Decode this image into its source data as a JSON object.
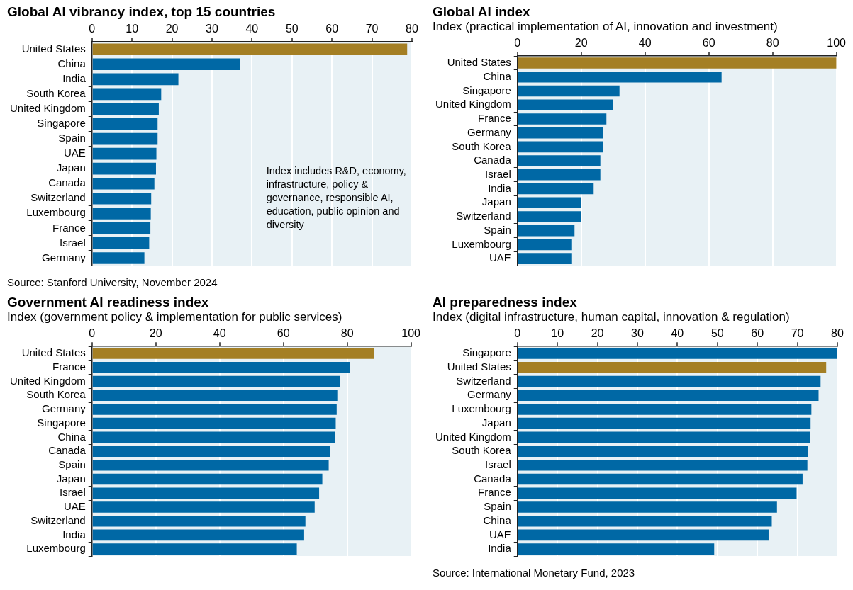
{
  "chart_data": [
    {
      "type": "bar",
      "orientation": "horizontal",
      "title": "Global AI vibrancy index, top 15 countries",
      "categories": [
        "United States",
        "China",
        "India",
        "South Korea",
        "United Kingdom",
        "Singapore",
        "Spain",
        "UAE",
        "Japan",
        "Canada",
        "Switzerland",
        "Luxembourg",
        "France",
        "Israel",
        "Germany"
      ],
      "values": [
        78.8,
        37.0,
        21.6,
        17.3,
        16.7,
        16.4,
        16.4,
        16.1,
        16.0,
        15.6,
        14.8,
        14.7,
        14.6,
        14.3,
        13.1
      ],
      "colors": [
        "#a47f24",
        "#0068a5",
        "#0068a5",
        "#0068a5",
        "#0068a5",
        "#0068a5",
        "#0068a5",
        "#0068a5",
        "#0068a5",
        "#0068a5",
        "#0068a5",
        "#0068a5",
        "#0068a5",
        "#0068a5",
        "#0068a5"
      ],
      "xlim": [
        0,
        80
      ],
      "xticks": [
        0,
        10,
        20,
        30,
        40,
        50,
        60,
        70,
        80
      ],
      "grid": "x",
      "annotations": [
        "Index includes R&D, economy, infrastructure, policy & governance, responsible AI, education, public opinion and diversity",
        "Source: Stanford University, November 2024"
      ]
    },
    {
      "type": "bar",
      "orientation": "horizontal",
      "title": "Global AI index",
      "subtitle": "Index (practical implementation of AI, innovation and investment)",
      "categories": [
        "United States",
        "China",
        "Singapore",
        "United Kingdom",
        "France",
        "Germany",
        "South Korea",
        "Canada",
        "Israel",
        "India",
        "Japan",
        "Switzerland",
        "Spain",
        "Luxembourg",
        "UAE"
      ],
      "values": [
        100,
        64.0,
        32.0,
        30.0,
        27.9,
        26.9,
        26.9,
        26.0,
        26.0,
        23.9,
        20.0,
        20.0,
        17.9,
        16.9,
        16.9
      ],
      "colors": [
        "#a47f24",
        "#0068a5",
        "#0068a5",
        "#0068a5",
        "#0068a5",
        "#0068a5",
        "#0068a5",
        "#0068a5",
        "#0068a5",
        "#0068a5",
        "#0068a5",
        "#0068a5",
        "#0068a5",
        "#0068a5",
        "#0068a5"
      ],
      "xlim": [
        0,
        100
      ],
      "xticks": [
        0,
        20,
        40,
        60,
        80,
        100
      ],
      "grid": "x"
    },
    {
      "type": "bar",
      "orientation": "horizontal",
      "title": "Government AI readiness index",
      "subtitle": "Index (government policy & implementation for public services)",
      "categories": [
        "United States",
        "France",
        "United Kingdom",
        "South Korea",
        "Germany",
        "Singapore",
        "China",
        "Canada",
        "Spain",
        "Japan",
        "Israel",
        "UAE",
        "Switzerland",
        "India",
        "Luxembourg"
      ],
      "values": [
        88.5,
        80.9,
        77.7,
        76.9,
        76.7,
        76.4,
        76.2,
        74.6,
        74.2,
        72.2,
        71.2,
        69.8,
        66.9,
        66.5,
        64.2
      ],
      "colors": [
        "#a47f24",
        "#0068a5",
        "#0068a5",
        "#0068a5",
        "#0068a5",
        "#0068a5",
        "#0068a5",
        "#0068a5",
        "#0068a5",
        "#0068a5",
        "#0068a5",
        "#0068a5",
        "#0068a5",
        "#0068a5",
        "#0068a5"
      ],
      "xlim": [
        0,
        100
      ],
      "xticks": [
        0,
        20,
        40,
        60,
        80,
        100
      ],
      "grid": "x"
    },
    {
      "type": "bar",
      "orientation": "horizontal",
      "title": "AI preparedness index",
      "subtitle": "Index (digital infrastructure, human capital, innovation & regulation)",
      "categories": [
        "Singapore",
        "United States",
        "Switzerland",
        "Germany",
        "Luxembourg",
        "Japan",
        "United Kingdom",
        "South Korea",
        "Israel",
        "Canada",
        "France",
        "Spain",
        "China",
        "UAE",
        "India"
      ],
      "values": [
        80.0,
        77.2,
        75.8,
        75.3,
        73.5,
        73.3,
        73.1,
        72.6,
        72.5,
        71.3,
        69.8,
        64.9,
        63.6,
        62.8,
        49.2
      ],
      "colors": [
        "#0068a5",
        "#a47f24",
        "#0068a5",
        "#0068a5",
        "#0068a5",
        "#0068a5",
        "#0068a5",
        "#0068a5",
        "#0068a5",
        "#0068a5",
        "#0068a5",
        "#0068a5",
        "#0068a5",
        "#0068a5",
        "#0068a5"
      ],
      "xlim": [
        0,
        80
      ],
      "xticks": [
        0,
        10,
        20,
        30,
        40,
        50,
        60,
        70,
        80
      ],
      "grid": "x",
      "annotations": [
        "Source: International Monetary Fund, 2023"
      ]
    }
  ]
}
